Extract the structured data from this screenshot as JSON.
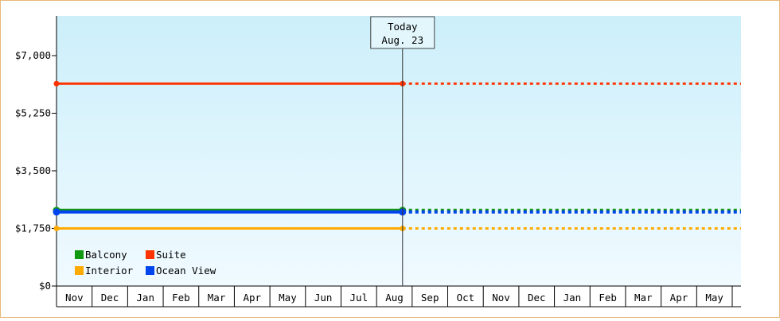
{
  "chart_data": {
    "type": "line",
    "title": "",
    "xlabel": "",
    "ylabel": "",
    "ylim": [
      0,
      7000
    ],
    "y_ticks": [
      0,
      1750,
      3500,
      5250,
      7000
    ],
    "y_tick_labels": [
      "$0",
      "$1,750",
      "$3,500",
      "$5,250",
      "$7,000"
    ],
    "months": [
      "Nov",
      "Dec",
      "Jan",
      "Feb",
      "Mar",
      "Apr",
      "May",
      "Jun",
      "Jul",
      "Aug",
      "Sep",
      "Oct",
      "Nov",
      "Dec",
      "Jan",
      "Feb",
      "Mar",
      "Apr",
      "May"
    ],
    "today": {
      "line1": "Today",
      "line2": "Aug. 23",
      "month_index": 9.73
    },
    "legend_position": "bottom-left",
    "series": [
      {
        "name": "Balcony",
        "color": "#119911",
        "value": 2300,
        "style_after_today": "dotted"
      },
      {
        "name": "Suite",
        "color": "#ff3300",
        "value": 6150,
        "style_after_today": "dotted"
      },
      {
        "name": "Interior",
        "color": "#ffaa00",
        "value": 1750,
        "style_after_today": "dotted"
      },
      {
        "name": "Ocean View",
        "color": "#0044ee",
        "value": 2250,
        "style_after_today": "dotted"
      }
    ],
    "colors": {
      "plot_top": "#cceffa",
      "plot_bottom": "#f0faff",
      "border": "#e8b878"
    }
  }
}
